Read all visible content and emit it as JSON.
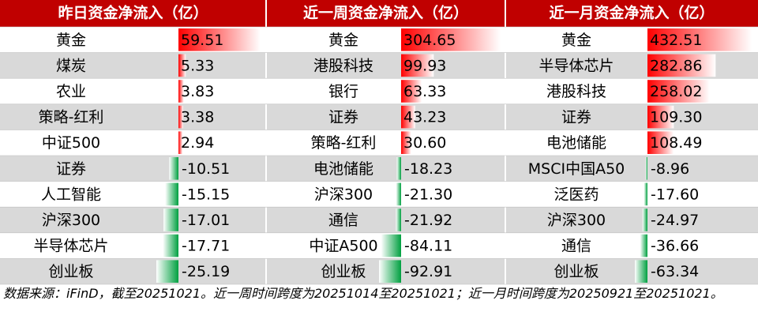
{
  "columns": [
    {
      "header": "昨日资金净流入（亿）",
      "rows": [
        {
          "name": "黄金",
          "value": "59.51"
        },
        {
          "name": "煤炭",
          "value": "5.33"
        },
        {
          "name": "农业",
          "value": "3.83"
        },
        {
          "name": "策略-红利",
          "value": "3.38"
        },
        {
          "name": "中证500",
          "value": "2.94"
        },
        {
          "name": "证券",
          "value": "-10.51"
        },
        {
          "name": "人工智能",
          "value": "-15.15"
        },
        {
          "name": "沪深300",
          "value": "-17.01"
        },
        {
          "name": "半导体芯片",
          "value": "-17.71"
        },
        {
          "name": "创业板",
          "value": "-25.19"
        }
      ]
    },
    {
      "header": "近一周资金净流入（亿）",
      "rows": [
        {
          "name": "黄金",
          "value": "304.65"
        },
        {
          "name": "港股科技",
          "value": "99.93"
        },
        {
          "name": "银行",
          "value": "63.33"
        },
        {
          "name": "证券",
          "value": "43.23"
        },
        {
          "name": "策略-红利",
          "value": "30.60"
        },
        {
          "name": "电池储能",
          "value": "-18.23"
        },
        {
          "name": "沪深300",
          "value": "-21.30"
        },
        {
          "name": "通信",
          "value": "-21.92"
        },
        {
          "name": "中证A500",
          "value": "-84.11"
        },
        {
          "name": "创业板",
          "value": "-92.91"
        }
      ]
    },
    {
      "header": "近一月资金净流入（亿）",
      "rows": [
        {
          "name": "黄金",
          "value": "432.51"
        },
        {
          "name": "半导体芯片",
          "value": "282.86"
        },
        {
          "name": "港股科技",
          "value": "258.02"
        },
        {
          "name": "证券",
          "value": "109.30"
        },
        {
          "name": "电池储能",
          "value": "108.49"
        },
        {
          "name": "MSCI中国A50",
          "value": "-8.96"
        },
        {
          "name": "泛医药",
          "value": "-17.60"
        },
        {
          "name": "沪深300",
          "value": "-24.97"
        },
        {
          "name": "通信",
          "value": "-36.66"
        },
        {
          "name": "创业板",
          "value": "-63.34"
        }
      ]
    }
  ],
  "footnote": "数据来源：iFinD，截至20251021。近一周时间跨度为20251014至20251021；近一月时间跨度为20250921至20251021。"
}
